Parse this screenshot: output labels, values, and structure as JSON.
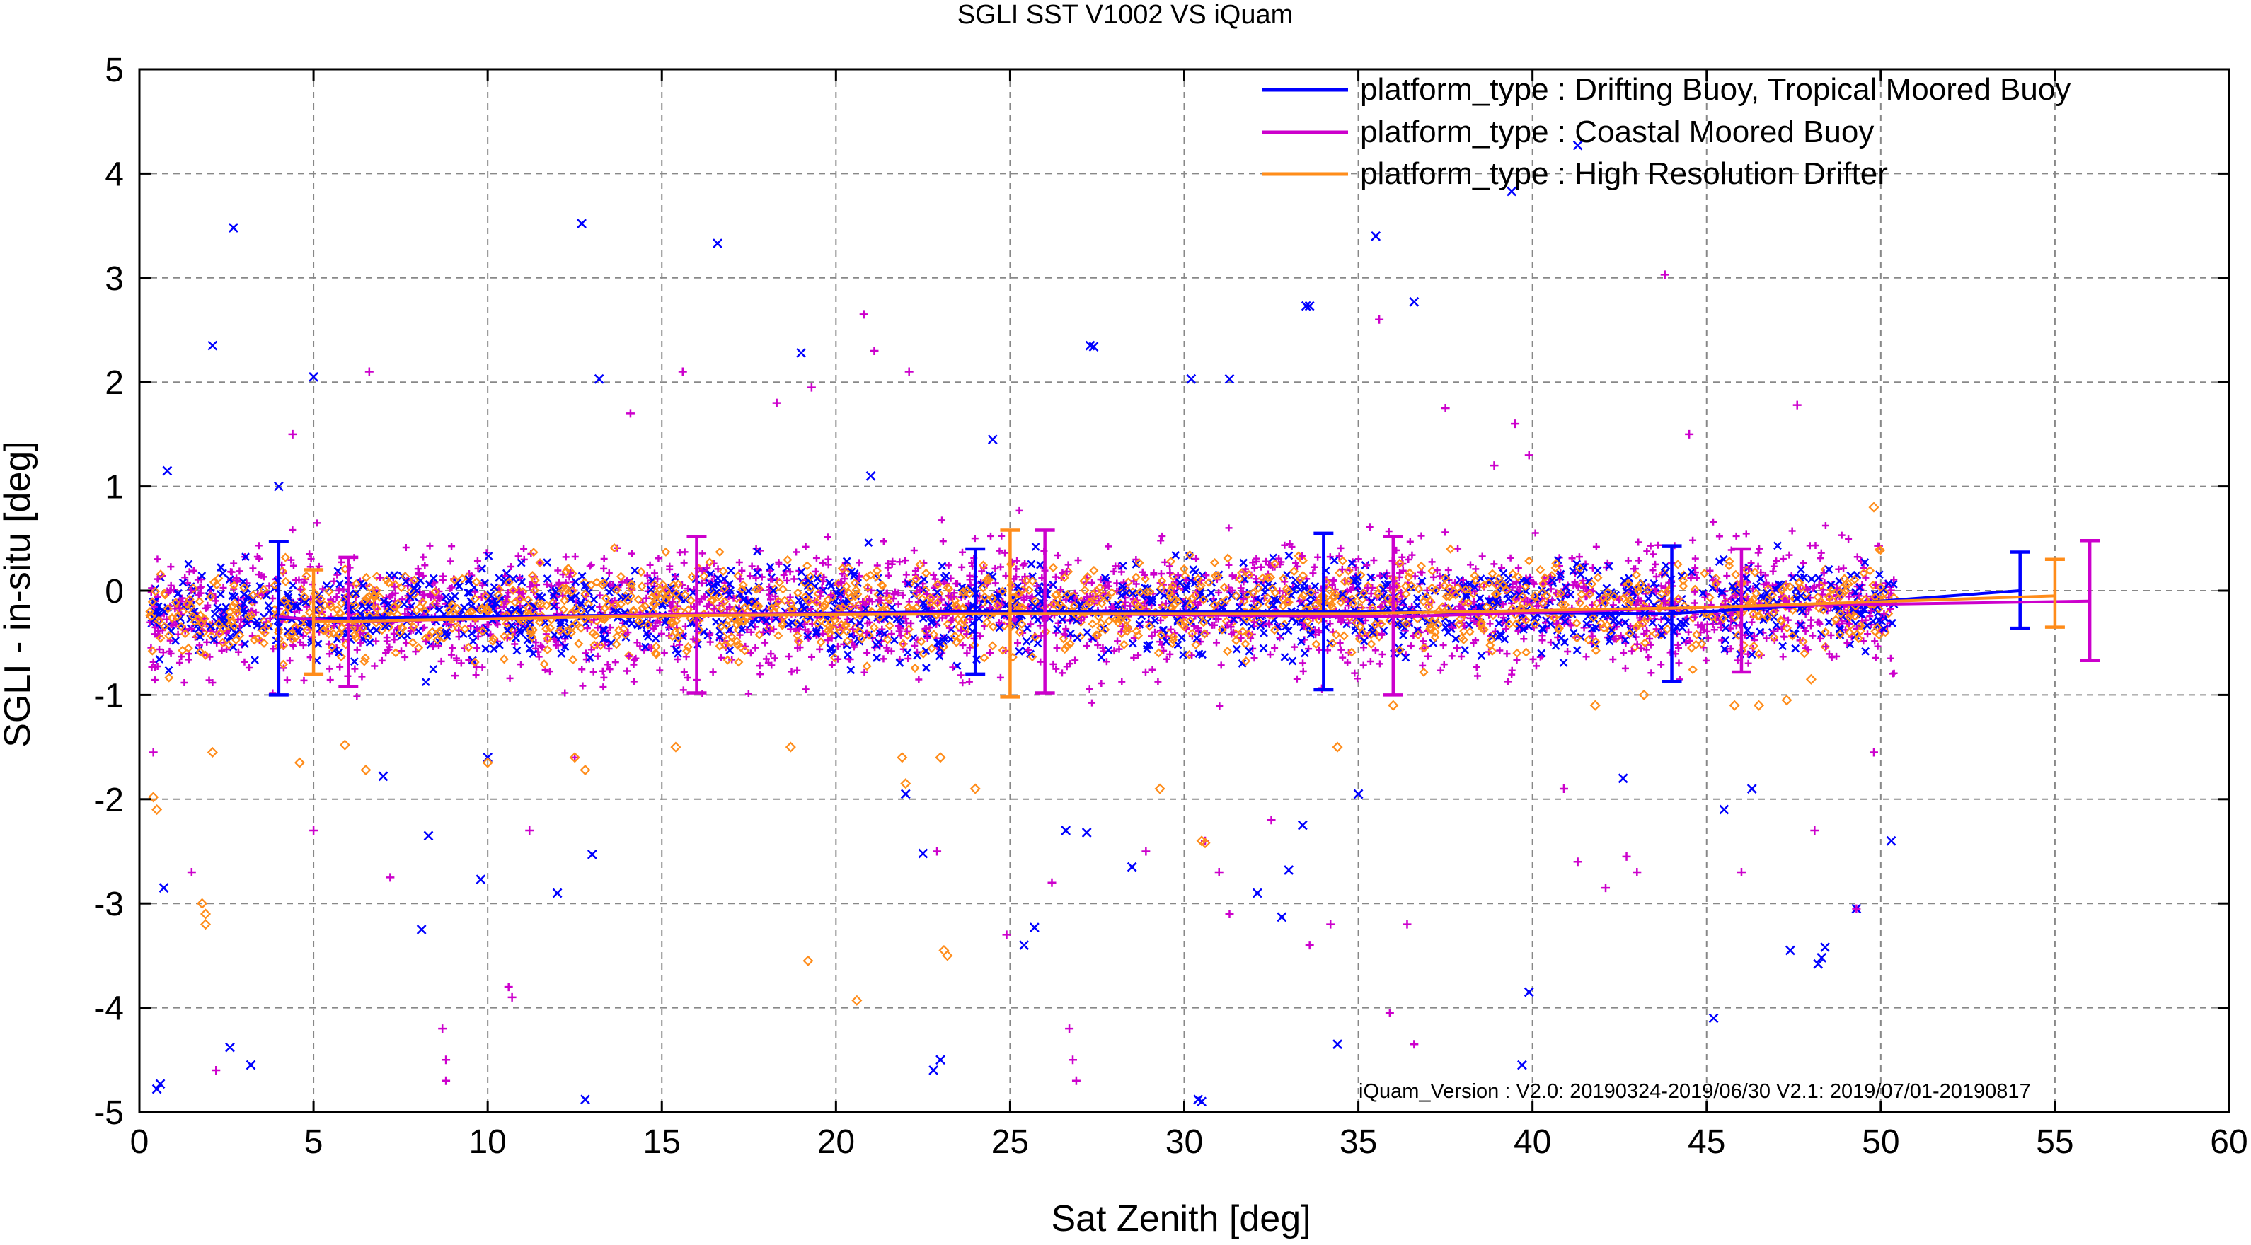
{
  "chart_data": {
    "type": "scatter",
    "title": "SGLI SST V1002 VS iQuam",
    "xlabel": "Sat Zenith [deg]",
    "ylabel": "SGLI - in-situ [deg]",
    "xlim": [
      0,
      60
    ],
    "ylim": [
      -5,
      5
    ],
    "x_ticks": [
      "0",
      "5",
      "10",
      "15",
      "20",
      "25",
      "30",
      "35",
      "40",
      "45",
      "50",
      "55",
      "60"
    ],
    "y_ticks": [
      "5",
      "4",
      "3",
      "2",
      "1",
      "0",
      "-1",
      "-2",
      "-3",
      "-4",
      "-5"
    ],
    "x_tick_values": [
      0,
      5,
      10,
      15,
      20,
      25,
      30,
      35,
      40,
      45,
      50,
      55,
      60
    ],
    "y_tick_values": [
      5,
      4,
      3,
      2,
      1,
      0,
      -1,
      -2,
      -3,
      -4,
      -5
    ],
    "grid": true,
    "legend_position": "top-right",
    "annotation": "iQuam_Version :  V2.0: 20190324-2019/06/30 V2.1: 2019/07/01-20190817",
    "series": [
      {
        "name": "platform_type : Drifting Buoy, Tropical Moored Buoy",
        "color": "#0000ff",
        "marker": "x",
        "mean_line": {
          "x": [
            4,
            24,
            34,
            44,
            50,
            54
          ],
          "y": [
            -0.27,
            -0.2,
            -0.2,
            -0.22,
            -0.1,
            0.0
          ]
        },
        "error_bars": [
          {
            "x": 4,
            "mean": -0.27,
            "low": -1.0,
            "high": 0.47
          },
          {
            "x": 24,
            "mean": -0.2,
            "low": -0.8,
            "high": 0.4
          },
          {
            "x": 34,
            "mean": -0.2,
            "low": -0.95,
            "high": 0.55
          },
          {
            "x": 44,
            "mean": -0.22,
            "low": -0.87,
            "high": 0.43
          },
          {
            "x": 54,
            "mean": 0.0,
            "low": -0.36,
            "high": 0.37
          }
        ],
        "sample_points": [
          [
            0.5,
            -4.78
          ],
          [
            0.6,
            -4.73
          ],
          [
            0.7,
            -2.85
          ],
          [
            0.8,
            1.15
          ],
          [
            2.1,
            2.35
          ],
          [
            2.7,
            3.48
          ],
          [
            2.6,
            -4.38
          ],
          [
            3.2,
            -4.55
          ],
          [
            4.0,
            1.0
          ],
          [
            5.0,
            2.05
          ],
          [
            7.0,
            -1.78
          ],
          [
            8.1,
            -3.25
          ],
          [
            8.3,
            -2.35
          ],
          [
            9.8,
            -2.77
          ],
          [
            10.0,
            -1.6
          ],
          [
            12.0,
            -2.9
          ],
          [
            12.7,
            3.52
          ],
          [
            13.0,
            -2.53
          ],
          [
            12.8,
            -4.88
          ],
          [
            13.2,
            2.03
          ],
          [
            16.6,
            3.33
          ],
          [
            19.0,
            2.28
          ],
          [
            21.0,
            1.1
          ],
          [
            22.0,
            -1.95
          ],
          [
            22.5,
            -2.52
          ],
          [
            22.8,
            -4.6
          ],
          [
            23.0,
            -4.5
          ],
          [
            24.5,
            1.45
          ],
          [
            25.4,
            -3.4
          ],
          [
            25.7,
            -3.23
          ],
          [
            26.6,
            -2.3
          ],
          [
            27.2,
            -2.32
          ],
          [
            27.3,
            2.35
          ],
          [
            27.4,
            2.34
          ],
          [
            28.5,
            -2.65
          ],
          [
            30.2,
            2.03
          ],
          [
            30.4,
            -4.88
          ],
          [
            30.5,
            -4.9
          ],
          [
            31.3,
            2.03
          ],
          [
            32.1,
            -2.9
          ],
          [
            32.8,
            -3.13
          ],
          [
            33.0,
            -2.68
          ],
          [
            33.4,
            -2.25
          ],
          [
            33.5,
            2.73
          ],
          [
            33.6,
            2.73
          ],
          [
            34.4,
            -4.35
          ],
          [
            35.0,
            -1.95
          ],
          [
            35.5,
            3.4
          ],
          [
            36.6,
            2.77
          ],
          [
            39.4,
            3.83
          ],
          [
            39.7,
            -4.55
          ],
          [
            39.9,
            -3.85
          ],
          [
            41.3,
            4.27
          ],
          [
            42.6,
            -1.8
          ],
          [
            45.2,
            -4.1
          ],
          [
            45.5,
            -2.1
          ],
          [
            46.3,
            -1.9
          ],
          [
            47.4,
            -3.45
          ],
          [
            48.2,
            -3.58
          ],
          [
            48.3,
            -3.52
          ],
          [
            48.4,
            -3.42
          ],
          [
            49.3,
            -3.05
          ],
          [
            50.3,
            -2.4
          ]
        ]
      },
      {
        "name": "platform_type : Coastal Moored Buoy",
        "color": "#cc00cc",
        "marker": "+",
        "mean_line": {
          "x": [
            4,
            6,
            16,
            26,
            36,
            46,
            56
          ],
          "y": [
            -0.25,
            -0.3,
            -0.22,
            -0.22,
            -0.25,
            -0.15,
            -0.1
          ]
        },
        "error_bars": [
          {
            "x": 6,
            "mean": -0.3,
            "low": -0.92,
            "high": 0.32
          },
          {
            "x": 16,
            "mean": -0.22,
            "low": -0.98,
            "high": 0.52
          },
          {
            "x": 26,
            "mean": -0.22,
            "low": -0.98,
            "high": 0.58
          },
          {
            "x": 36,
            "mean": -0.25,
            "low": -1.0,
            "high": 0.52
          },
          {
            "x": 46,
            "mean": -0.15,
            "low": -0.78,
            "high": 0.4
          },
          {
            "x": 56,
            "mean": -0.1,
            "low": -0.67,
            "high": 0.48
          }
        ],
        "sample_points": [
          [
            0.4,
            -1.55
          ],
          [
            1.5,
            -2.7
          ],
          [
            2.2,
            -4.6
          ],
          [
            4.4,
            1.5
          ],
          [
            5.0,
            -2.3
          ],
          [
            6.6,
            2.1
          ],
          [
            7.2,
            -2.75
          ],
          [
            8.7,
            -4.2
          ],
          [
            8.8,
            -4.5
          ],
          [
            8.8,
            -4.7
          ],
          [
            10.6,
            -3.8
          ],
          [
            10.7,
            -3.9
          ],
          [
            11.2,
            -2.3
          ],
          [
            12.5,
            -1.6
          ],
          [
            14.1,
            1.7
          ],
          [
            15.6,
            2.1
          ],
          [
            18.3,
            1.8
          ],
          [
            19.3,
            1.95
          ],
          [
            20.8,
            2.65
          ],
          [
            21.1,
            2.3
          ],
          [
            22.1,
            2.1
          ],
          [
            22.9,
            -2.5
          ],
          [
            24.9,
            -3.3
          ],
          [
            26.2,
            -2.8
          ],
          [
            26.7,
            -4.2
          ],
          [
            26.8,
            -4.5
          ],
          [
            26.9,
            -4.7
          ],
          [
            28.9,
            -2.5
          ],
          [
            30.6,
            -2.4
          ],
          [
            31.0,
            -2.7
          ],
          [
            31.3,
            -3.1
          ],
          [
            32.5,
            -2.2
          ],
          [
            33.6,
            -3.4
          ],
          [
            34.2,
            -3.2
          ],
          [
            35.6,
            2.6
          ],
          [
            35.9,
            -4.05
          ],
          [
            36.4,
            -3.2
          ],
          [
            36.6,
            -4.35
          ],
          [
            37.5,
            1.75
          ],
          [
            38.9,
            1.2
          ],
          [
            39.5,
            1.6
          ],
          [
            39.9,
            1.3
          ],
          [
            40.9,
            -1.9
          ],
          [
            41.3,
            -2.6
          ],
          [
            42.1,
            -2.85
          ],
          [
            42.7,
            -2.55
          ],
          [
            43.0,
            -2.7
          ],
          [
            43.8,
            3.03
          ],
          [
            44.5,
            1.5
          ],
          [
            46.0,
            -2.7
          ],
          [
            47.6,
            1.78
          ],
          [
            48.1,
            -2.3
          ],
          [
            49.3,
            -3.05
          ],
          [
            49.8,
            -1.55
          ]
        ]
      },
      {
        "name": "platform_type : High Resolution Drifter",
        "color": "#ff8c1a",
        "marker": "diamond",
        "mean_line": {
          "x": [
            5,
            15,
            25,
            35,
            45,
            55
          ],
          "y": [
            -0.3,
            -0.24,
            -0.22,
            -0.22,
            -0.16,
            -0.05
          ]
        },
        "error_bars": [
          {
            "x": 5,
            "mean": -0.3,
            "low": -0.8,
            "high": 0.2
          },
          {
            "x": 25,
            "mean": -0.22,
            "low": -1.02,
            "high": 0.58
          },
          {
            "x": 55,
            "mean": -0.05,
            "low": -0.35,
            "high": 0.3
          }
        ],
        "sample_points": [
          [
            0.4,
            -1.98
          ],
          [
            0.5,
            -2.1
          ],
          [
            1.8,
            -3.0
          ],
          [
            1.9,
            -3.1
          ],
          [
            1.9,
            -3.2
          ],
          [
            2.1,
            -1.55
          ],
          [
            4.6,
            -1.65
          ],
          [
            5.9,
            -1.48
          ],
          [
            6.5,
            -1.72
          ],
          [
            10.0,
            -1.65
          ],
          [
            12.5,
            -1.6
          ],
          [
            12.8,
            -1.72
          ],
          [
            15.4,
            -1.5
          ],
          [
            18.7,
            -1.5
          ],
          [
            19.2,
            -3.55
          ],
          [
            20.6,
            -3.93
          ],
          [
            21.9,
            -1.6
          ],
          [
            22.0,
            -1.85
          ],
          [
            23.0,
            -1.6
          ],
          [
            23.1,
            -3.45
          ],
          [
            23.2,
            -3.5
          ],
          [
            24.0,
            -1.9
          ],
          [
            29.3,
            -1.9
          ],
          [
            30.5,
            -2.4
          ],
          [
            30.6,
            -2.42
          ],
          [
            34.4,
            -1.5
          ],
          [
            36.0,
            -1.1
          ],
          [
            41.8,
            -1.1
          ],
          [
            43.2,
            -1.0
          ],
          [
            45.8,
            -1.1
          ],
          [
            46.5,
            -1.1
          ],
          [
            47.3,
            -1.05
          ],
          [
            48.0,
            -0.85
          ],
          [
            49.8,
            0.8
          ]
        ]
      }
    ]
  }
}
